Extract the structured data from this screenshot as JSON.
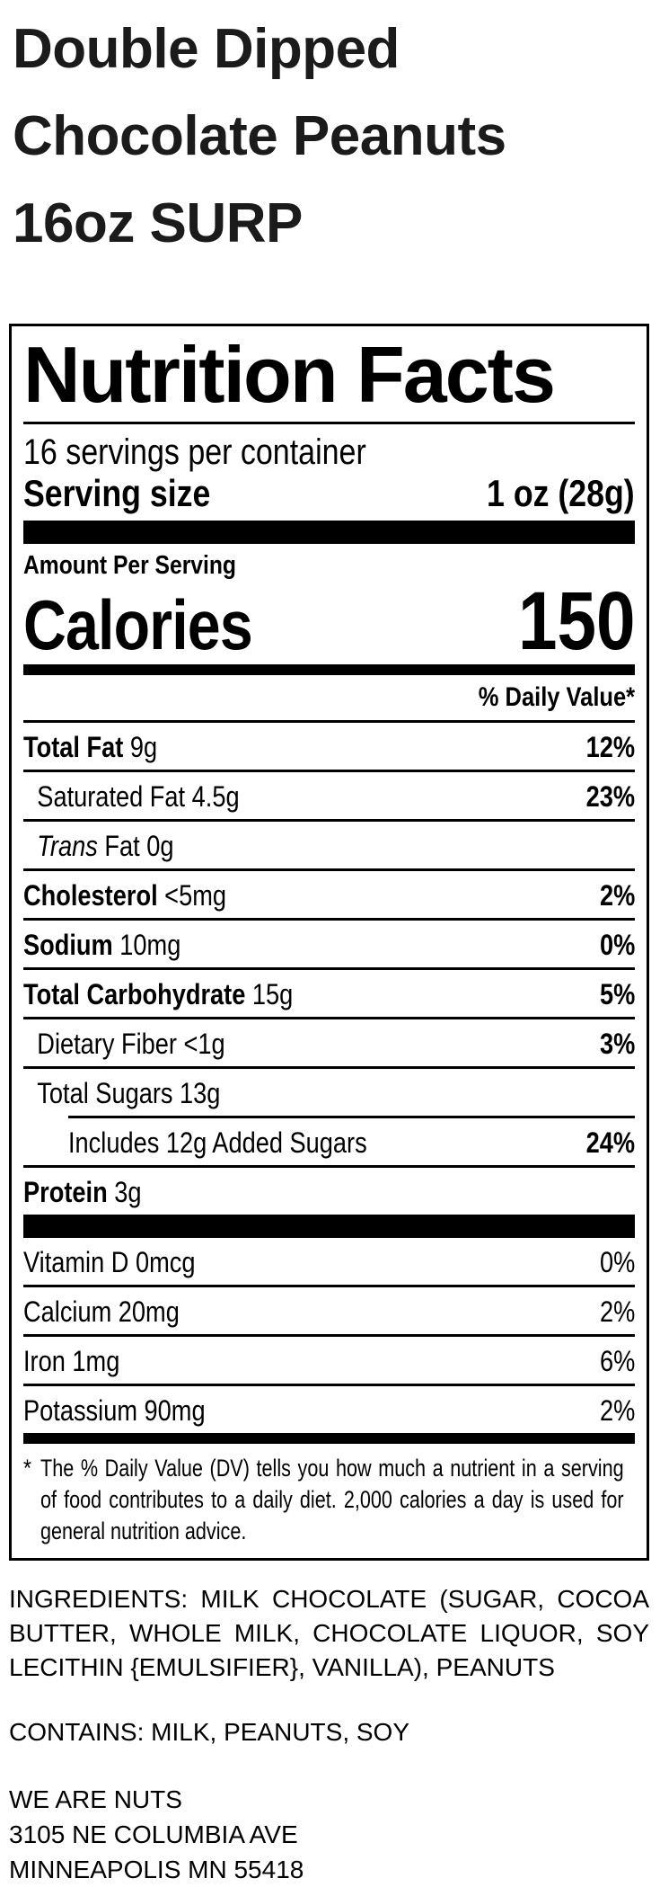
{
  "product": {
    "title": "Double Dipped\nChocolate Peanuts\n16oz SURP"
  },
  "nutrition_facts": {
    "heading": "Nutrition Facts",
    "servings_per_container": "16 servings per container",
    "serving_size_label": "Serving size",
    "serving_size_value": "1 oz (28g)",
    "amount_per_serving": "Amount Per Serving",
    "calories_label": "Calories",
    "calories_value": "150",
    "daily_value_header": "% Daily Value*",
    "rows": [
      {
        "lead": "Total Fat",
        "rest": " 9g",
        "dv": "12%"
      },
      {
        "lead": "",
        "rest": "Saturated Fat 4.5g",
        "dv": "23%"
      },
      {
        "lead": "Trans",
        "rest": " Fat 0g",
        "dv": ""
      },
      {
        "lead": "Cholesterol",
        "rest": " <5mg",
        "dv": "2%"
      },
      {
        "lead": "Sodium",
        "rest": " 10mg",
        "dv": "0%"
      },
      {
        "lead": "Total Carbohydrate",
        "rest": " 15g",
        "dv": "5%"
      },
      {
        "lead": "",
        "rest": "Dietary Fiber <1g",
        "dv": "3%"
      },
      {
        "lead": "",
        "rest": "Total Sugars 13g",
        "dv": ""
      },
      {
        "lead": "",
        "rest": "Includes 12g Added Sugars",
        "dv": "24%"
      },
      {
        "lead": "Protein",
        "rest": " 3g",
        "dv": ""
      }
    ],
    "vitamins": [
      {
        "name": "Vitamin D 0mcg",
        "dv": "0%"
      },
      {
        "name": "Calcium 20mg",
        "dv": "2%"
      },
      {
        "name": "Iron 1mg",
        "dv": "6%"
      },
      {
        "name": "Potassium 90mg",
        "dv": "2%"
      }
    ],
    "footnote_marker": "*",
    "footnote": "The % Daily Value (DV) tells you how much a nutrient in a serving of food contributes to a daily diet. 2,000 calories a day is used for general nutrition advice."
  },
  "ingredients": "INGREDIENTS: MILK CHOCOLATE (SUGAR, COCOA BUTTER, WHOLE MILK, CHOCOLATE LIQUOR, SOY LECITHIN {EMULSIFIER}, VANILLA), PEANUTS",
  "contains": "CONTAINS: MILK, PEANUTS, SOY",
  "manufacturer": "WE ARE NUTS\n3105 NE COLUMBIA AVE\nMINNEAPOLIS MN 55418"
}
